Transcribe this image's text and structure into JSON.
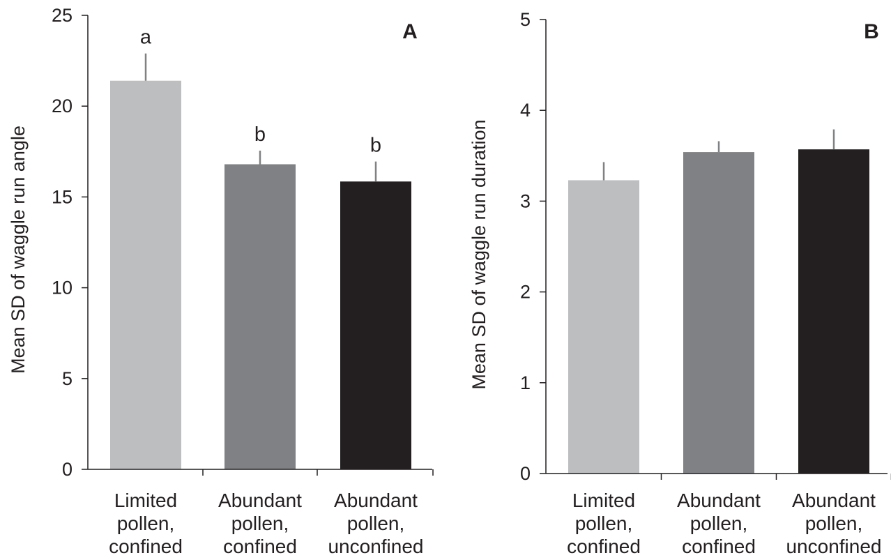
{
  "chart_data": [
    {
      "type": "bar",
      "panel_label": "A",
      "ylabel": "Mean SD of waggle run angle",
      "xlabel": "",
      "ylim": [
        0,
        25
      ],
      "yticks": [
        "0",
        "5",
        "10",
        "15",
        "20",
        "25"
      ],
      "categories": [
        [
          "Limited",
          "pollen,",
          "confined"
        ],
        [
          "Abundant",
          "pollen,",
          "confined"
        ],
        [
          "Abundant",
          "pollen,",
          "unconfined"
        ]
      ],
      "values": [
        21.4,
        16.8,
        15.85
      ],
      "error_upper": [
        1.5,
        0.75,
        1.1
      ],
      "significance_letters": [
        "a",
        "b",
        "b"
      ],
      "colors": [
        "#bdbec0",
        "#808184",
        "#231f20"
      ],
      "error_bar_color": "#808184"
    },
    {
      "type": "bar",
      "panel_label": "B",
      "ylabel": "Mean SD of waggle run duration",
      "xlabel": "",
      "ylim": [
        0,
        5
      ],
      "yticks": [
        "0",
        "1",
        "2",
        "3",
        "4",
        "5"
      ],
      "categories": [
        [
          "Limited",
          "pollen,",
          "confined"
        ],
        [
          "Abundant",
          "pollen,",
          "confined"
        ],
        [
          "Abundant",
          "pollen,",
          "unconfined"
        ]
      ],
      "values": [
        3.23,
        3.54,
        3.57
      ],
      "error_upper": [
        0.2,
        0.12,
        0.22
      ],
      "colors": [
        "#bdbec0",
        "#808184",
        "#231f20"
      ],
      "error_bar_color": "#808184"
    }
  ]
}
